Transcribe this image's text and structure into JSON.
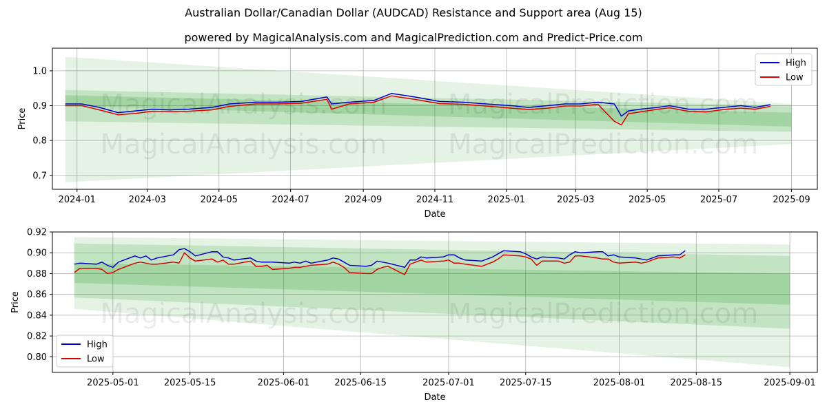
{
  "title": "Australian Dollar/Canadian Dollar (AUDCAD) Resistance and Support area (Aug 15)",
  "subtitle": "powered by MagicalAnalysis.com and MagicalPrediction.com and Predict-Price.com",
  "watermarks": [
    "MagicalAnalysis.com",
    "MagicalPrediction.com"
  ],
  "colors": {
    "high": "#0000cc",
    "low": "#dd0000",
    "band": "#2ca02c"
  },
  "chart_data": [
    {
      "type": "line",
      "xlabel": "Date",
      "ylabel": "Price",
      "x_range": [
        "2023-12-11",
        "2025-09-23"
      ],
      "ylim": [
        0.66,
        1.065
      ],
      "xticks": [
        "2024-01",
        "2024-03",
        "2024-05",
        "2024-07",
        "2024-09",
        "2024-11",
        "2025-01",
        "2025-03",
        "2025-05",
        "2025-07",
        "2025-09"
      ],
      "yticks": [
        "0.7",
        "0.8",
        "0.9",
        "1.0"
      ],
      "grid": true,
      "legend": "top-right",
      "legend_entries": [
        "High",
        "Low"
      ],
      "bands": [
        {
          "x": [
            "2023-12-22",
            "2025-09-01"
          ],
          "upper": [
            1.04,
            0.905
          ],
          "lower": [
            0.68,
            0.79
          ]
        },
        {
          "x": [
            "2023-12-22",
            "2025-09-01"
          ],
          "upper": [
            0.945,
            0.9
          ],
          "lower": [
            0.855,
            0.825
          ]
        },
        {
          "x": [
            "2023-12-22",
            "2025-09-01"
          ],
          "upper": [
            0.93,
            0.88
          ],
          "lower": [
            0.9,
            0.84
          ]
        }
      ],
      "series": [
        {
          "name": "High",
          "x": [
            "2023-12-22",
            "2024-01-05",
            "2024-01-20",
            "2024-02-05",
            "2024-02-20",
            "2024-03-05",
            "2024-03-20",
            "2024-04-05",
            "2024-04-25",
            "2024-05-10",
            "2024-06-01",
            "2024-06-20",
            "2024-07-10",
            "2024-08-01",
            "2024-08-05",
            "2024-08-20",
            "2024-09-10",
            "2024-09-25",
            "2024-10-15",
            "2024-11-05",
            "2024-11-25",
            "2024-12-15",
            "2025-01-05",
            "2025-01-20",
            "2025-02-05",
            "2025-02-20",
            "2025-03-05",
            "2025-03-20",
            "2025-04-03",
            "2025-04-09",
            "2025-04-15",
            "2025-04-25",
            "2025-05-10",
            "2025-05-20",
            "2025-06-05",
            "2025-06-20",
            "2025-07-05",
            "2025-07-20",
            "2025-08-01",
            "2025-08-14"
          ],
          "values": [
            0.905,
            0.905,
            0.895,
            0.88,
            0.885,
            0.89,
            0.888,
            0.89,
            0.895,
            0.905,
            0.91,
            0.91,
            0.912,
            0.925,
            0.905,
            0.91,
            0.915,
            0.935,
            0.925,
            0.912,
            0.91,
            0.905,
            0.9,
            0.895,
            0.9,
            0.905,
            0.905,
            0.91,
            0.905,
            0.87,
            0.885,
            0.89,
            0.895,
            0.9,
            0.89,
            0.89,
            0.895,
            0.9,
            0.895,
            0.903
          ]
        },
        {
          "name": "Low",
          "x": [
            "2023-12-22",
            "2024-01-05",
            "2024-01-20",
            "2024-02-05",
            "2024-02-20",
            "2024-03-05",
            "2024-03-20",
            "2024-04-05",
            "2024-04-25",
            "2024-05-10",
            "2024-06-01",
            "2024-06-20",
            "2024-07-10",
            "2024-08-01",
            "2024-08-05",
            "2024-08-20",
            "2024-09-10",
            "2024-09-25",
            "2024-10-15",
            "2024-11-05",
            "2024-11-25",
            "2024-12-15",
            "2025-01-05",
            "2025-01-20",
            "2025-02-05",
            "2025-02-20",
            "2025-03-05",
            "2025-03-20",
            "2025-04-03",
            "2025-04-09",
            "2025-04-15",
            "2025-04-25",
            "2025-05-10",
            "2025-05-20",
            "2025-06-05",
            "2025-06-20",
            "2025-07-05",
            "2025-07-20",
            "2025-08-01",
            "2025-08-14"
          ],
          "values": [
            0.9,
            0.9,
            0.888,
            0.874,
            0.878,
            0.884,
            0.883,
            0.884,
            0.888,
            0.898,
            0.905,
            0.905,
            0.907,
            0.918,
            0.89,
            0.905,
            0.91,
            0.928,
            0.918,
            0.906,
            0.904,
            0.899,
            0.893,
            0.889,
            0.893,
            0.899,
            0.899,
            0.904,
            0.855,
            0.845,
            0.877,
            0.882,
            0.89,
            0.894,
            0.884,
            0.882,
            0.889,
            0.893,
            0.89,
            0.898
          ]
        }
      ]
    },
    {
      "type": "line",
      "xlabel": "Date",
      "ylabel": "Price",
      "x_range": [
        "2025-04-20",
        "2025-09-06"
      ],
      "ylim": [
        0.785,
        0.92
      ],
      "xticks": [
        "2025-05-01",
        "2025-05-15",
        "2025-06-01",
        "2025-06-15",
        "2025-07-01",
        "2025-07-15",
        "2025-08-01",
        "2025-08-15",
        "2025-09-01"
      ],
      "yticks": [
        "0.80",
        "0.82",
        "0.84",
        "0.86",
        "0.88",
        "0.90",
        "0.92"
      ],
      "grid": true,
      "legend": "bottom-left",
      "legend_entries": [
        "High",
        "Low"
      ],
      "bands": [
        {
          "x": [
            "2025-04-24",
            "2025-09-01"
          ],
          "upper": [
            0.915,
            0.908
          ],
          "lower": [
            0.846,
            0.79
          ]
        },
        {
          "x": [
            "2025-04-24",
            "2025-09-01"
          ],
          "upper": [
            0.909,
            0.897
          ],
          "lower": [
            0.857,
            0.827
          ]
        },
        {
          "x": [
            "2025-04-24",
            "2025-09-01"
          ],
          "upper": [
            0.89,
            0.88
          ],
          "lower": [
            0.871,
            0.85
          ]
        }
      ],
      "series": [
        {
          "name": "High",
          "x": [
            "2025-04-24",
            "2025-04-25",
            "2025-04-28",
            "2025-04-29",
            "2025-04-30",
            "2025-05-01",
            "2025-05-02",
            "2025-05-05",
            "2025-05-06",
            "2025-05-07",
            "2025-05-08",
            "2025-05-09",
            "2025-05-12",
            "2025-05-13",
            "2025-05-14",
            "2025-05-15",
            "2025-05-16",
            "2025-05-19",
            "2025-05-20",
            "2025-05-21",
            "2025-05-22",
            "2025-05-23",
            "2025-05-26",
            "2025-05-27",
            "2025-05-28",
            "2025-05-29",
            "2025-05-30",
            "2025-06-02",
            "2025-06-03",
            "2025-06-04",
            "2025-06-05",
            "2025-06-06",
            "2025-06-09",
            "2025-06-10",
            "2025-06-11",
            "2025-06-12",
            "2025-06-13",
            "2025-06-16",
            "2025-06-17",
            "2025-06-18",
            "2025-06-19",
            "2025-06-20",
            "2025-06-23",
            "2025-06-24",
            "2025-06-25",
            "2025-06-26",
            "2025-06-27",
            "2025-06-30",
            "2025-07-01",
            "2025-07-02",
            "2025-07-03",
            "2025-07-04",
            "2025-07-07",
            "2025-07-08",
            "2025-07-09",
            "2025-07-10",
            "2025-07-11",
            "2025-07-14",
            "2025-07-15",
            "2025-07-16",
            "2025-07-17",
            "2025-07-18",
            "2025-07-21",
            "2025-07-22",
            "2025-07-23",
            "2025-07-24",
            "2025-07-25",
            "2025-07-28",
            "2025-07-29",
            "2025-07-30",
            "2025-07-31",
            "2025-08-01",
            "2025-08-04",
            "2025-08-05",
            "2025-08-06",
            "2025-08-07",
            "2025-08-08",
            "2025-08-11",
            "2025-08-12",
            "2025-08-13"
          ],
          "values": [
            0.889,
            0.89,
            0.889,
            0.891,
            0.888,
            0.886,
            0.891,
            0.897,
            0.895,
            0.897,
            0.893,
            0.895,
            0.898,
            0.903,
            0.904,
            0.901,
            0.897,
            0.901,
            0.901,
            0.896,
            0.895,
            0.893,
            0.895,
            0.892,
            0.891,
            0.891,
            0.891,
            0.89,
            0.891,
            0.89,
            0.892,
            0.89,
            0.893,
            0.895,
            0.894,
            0.891,
            0.888,
            0.887,
            0.888,
            0.892,
            0.891,
            0.89,
            0.886,
            0.893,
            0.893,
            0.896,
            0.895,
            0.896,
            0.898,
            0.898,
            0.895,
            0.893,
            0.892,
            0.894,
            0.896,
            0.899,
            0.902,
            0.901,
            0.899,
            0.896,
            0.894,
            0.896,
            0.895,
            0.894,
            0.898,
            0.901,
            0.9,
            0.901,
            0.901,
            0.897,
            0.898,
            0.896,
            0.895,
            0.894,
            0.893,
            0.895,
            0.897,
            0.898,
            0.898,
            0.902
          ]
        },
        {
          "name": "Low",
          "x": [
            "2025-04-24",
            "2025-04-25",
            "2025-04-28",
            "2025-04-29",
            "2025-04-30",
            "2025-05-01",
            "2025-05-02",
            "2025-05-05",
            "2025-05-06",
            "2025-05-07",
            "2025-05-08",
            "2025-05-09",
            "2025-05-12",
            "2025-05-13",
            "2025-05-14",
            "2025-05-15",
            "2025-05-16",
            "2025-05-19",
            "2025-05-20",
            "2025-05-21",
            "2025-05-22",
            "2025-05-23",
            "2025-05-26",
            "2025-05-27",
            "2025-05-28",
            "2025-05-29",
            "2025-05-30",
            "2025-06-02",
            "2025-06-03",
            "2025-06-04",
            "2025-06-05",
            "2025-06-06",
            "2025-06-09",
            "2025-06-10",
            "2025-06-11",
            "2025-06-12",
            "2025-06-13",
            "2025-06-16",
            "2025-06-17",
            "2025-06-18",
            "2025-06-19",
            "2025-06-20",
            "2025-06-23",
            "2025-06-24",
            "2025-06-25",
            "2025-06-26",
            "2025-06-27",
            "2025-06-30",
            "2025-07-01",
            "2025-07-02",
            "2025-07-03",
            "2025-07-04",
            "2025-07-07",
            "2025-07-08",
            "2025-07-09",
            "2025-07-10",
            "2025-07-11",
            "2025-07-14",
            "2025-07-15",
            "2025-07-16",
            "2025-07-17",
            "2025-07-18",
            "2025-07-21",
            "2025-07-22",
            "2025-07-23",
            "2025-07-24",
            "2025-07-25",
            "2025-07-28",
            "2025-07-29",
            "2025-07-30",
            "2025-07-31",
            "2025-08-01",
            "2025-08-04",
            "2025-08-05",
            "2025-08-06",
            "2025-08-07",
            "2025-08-08",
            "2025-08-11",
            "2025-08-12",
            "2025-08-13"
          ],
          "values": [
            0.881,
            0.885,
            0.885,
            0.884,
            0.88,
            0.881,
            0.884,
            0.89,
            0.891,
            0.89,
            0.889,
            0.889,
            0.891,
            0.89,
            0.9,
            0.895,
            0.892,
            0.894,
            0.891,
            0.893,
            0.889,
            0.889,
            0.892,
            0.887,
            0.887,
            0.888,
            0.884,
            0.885,
            0.886,
            0.886,
            0.887,
            0.888,
            0.889,
            0.891,
            0.889,
            0.886,
            0.881,
            0.88,
            0.88,
            0.884,
            0.886,
            0.887,
            0.879,
            0.889,
            0.891,
            0.893,
            0.891,
            0.892,
            0.893,
            0.89,
            0.89,
            0.889,
            0.887,
            0.889,
            0.891,
            0.894,
            0.898,
            0.897,
            0.896,
            0.894,
            0.888,
            0.892,
            0.892,
            0.89,
            0.891,
            0.897,
            0.897,
            0.895,
            0.894,
            0.894,
            0.891,
            0.89,
            0.891,
            0.89,
            0.891,
            0.893,
            0.895,
            0.896,
            0.895,
            0.898
          ]
        }
      ]
    }
  ]
}
